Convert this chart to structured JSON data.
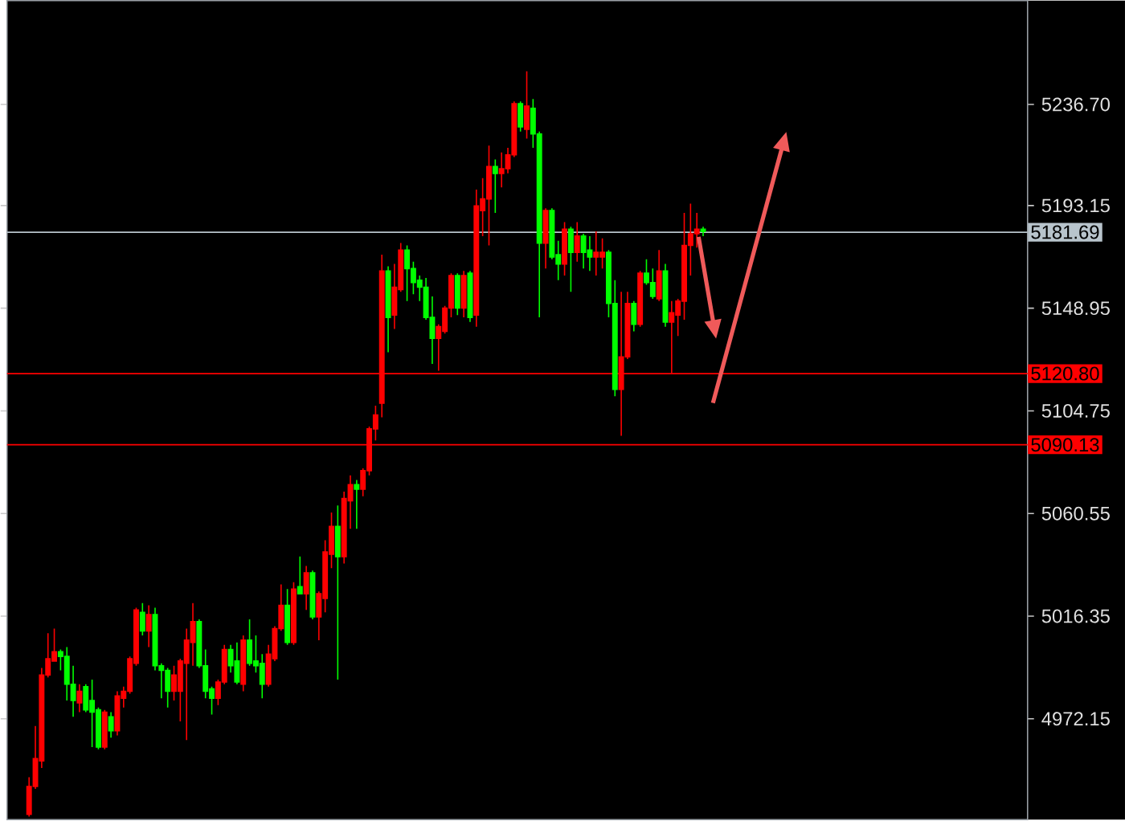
{
  "chart_data": {
    "type": "candlestick",
    "categories": [
      null,
      null,
      null,
      null,
      null,
      null,
      null,
      null,
      null,
      null,
      null,
      null,
      null,
      null,
      null,
      null,
      null,
      null,
      null,
      null,
      null,
      null,
      null,
      null,
      null,
      null,
      null,
      null,
      null,
      null,
      null,
      null,
      null,
      null,
      null,
      null,
      null,
      null,
      null,
      null,
      null,
      null,
      null,
      null,
      null,
      null,
      null,
      null,
      null,
      null,
      null,
      null,
      null,
      null,
      null,
      null,
      null,
      null,
      null,
      null,
      null,
      null,
      null,
      null,
      null,
      null,
      null,
      null,
      null,
      null,
      null,
      null,
      null,
      null,
      null,
      null,
      null,
      null,
      null,
      null,
      null,
      null,
      null,
      null,
      null,
      null,
      null,
      null,
      null,
      null,
      null,
      null,
      null,
      null,
      null,
      null,
      null,
      null,
      null,
      null,
      null,
      null,
      null,
      null,
      null,
      null,
      null,
      null,
      null,
      null,
      null,
      null,
      null,
      null,
      null,
      null,
      null,
      null,
      null,
      null,
      null,
      null,
      null,
      null,
      null,
      null,
      null,
      null,
      null,
      null,
      null,
      null,
      null,
      null,
      null,
      null,
      null,
      null,
      null,
      null,
      null,
      null,
      null,
      null,
      null,
      null,
      null,
      null,
      null,
      null,
      null,
      null,
      null,
      null,
      null,
      null,
      null,
      null,
      null,
      null,
      null,
      null
    ],
    "ohlc": [
      null,
      null,
      null,
      [
        4931,
        4947,
        4930,
        4943
      ],
      [
        4943,
        4969,
        4942,
        4955
      ],
      [
        4954,
        4994,
        4951,
        4991
      ],
      [
        4991,
        5009,
        4990,
        4998
      ],
      [
        4997,
        5011,
        4997,
        5001
      ],
      [
        5001,
        5002,
        4993,
        4999
      ],
      [
        4999,
        5003,
        4980,
        4987
      ],
      [
        4987,
        4995,
        4973,
        4980
      ],
      [
        4979,
        4987,
        4975,
        4984
      ],
      [
        4986,
        4987,
        4975,
        4976
      ],
      [
        4980,
        4989,
        4960,
        4975
      ],
      [
        4976,
        4977,
        4959,
        4960
      ],
      [
        4960,
        4976,
        4959,
        4975
      ],
      [
        4973,
        4975,
        4964,
        4967
      ],
      [
        4967,
        4984,
        4965,
        4982
      ],
      [
        4981,
        4986,
        4977,
        4984
      ],
      [
        4984,
        4999,
        4983,
        4998
      ],
      [
        4996,
        5020,
        4995,
        5019
      ],
      [
        5018,
        5022,
        5008,
        5010
      ],
      [
        5010,
        5021,
        5003,
        5017
      ],
      [
        5017,
        5020,
        4993,
        4995
      ],
      [
        4995,
        4996,
        4981,
        4993
      ],
      [
        4993,
        4994,
        4977,
        4984
      ],
      [
        4984,
        4995,
        4980,
        4991
      ],
      [
        4984,
        4998,
        4971,
        4997
      ],
      [
        4996,
        5011,
        4963,
        5006
      ],
      [
        5005,
        5022,
        4995,
        5014
      ],
      [
        5014,
        5015,
        4994,
        4995
      ],
      [
        4995,
        5002,
        4981,
        4984
      ],
      [
        4985,
        4986,
        4974,
        4981
      ],
      [
        4981,
        4989,
        4978,
        4988
      ],
      [
        4988,
        5004,
        4987,
        5002
      ],
      [
        5002,
        5004,
        4992,
        4995
      ],
      [
        4997,
        5005,
        4987,
        4988
      ],
      [
        4987,
        5008,
        4984,
        5006
      ],
      [
        5006,
        5015,
        4995,
        4996
      ],
      [
        4997,
        5008,
        4992,
        4995
      ],
      [
        4996,
        5000,
        4981,
        4987
      ],
      [
        4987,
        5004,
        4986,
        5000
      ],
      [
        4998,
        5012,
        4997,
        5011
      ],
      [
        5011,
        5030,
        5010,
        5021
      ],
      [
        5021,
        5028,
        5004,
        5005
      ],
      [
        5005,
        5031,
        5004,
        5028
      ],
      [
        5029,
        5042,
        5026,
        5026
      ],
      [
        5026,
        5038,
        5019,
        5035
      ],
      [
        5035,
        5036,
        5015,
        5016
      ],
      [
        5016,
        5027,
        5006,
        5026
      ],
      [
        5024,
        5049,
        5018,
        5044
      ],
      [
        5043,
        5061,
        5037,
        5055
      ],
      [
        5055,
        5064,
        4989,
        5042
      ],
      [
        5042,
        5070,
        5039,
        5067
      ],
      [
        5066,
        5077,
        5054,
        5073
      ],
      [
        5073,
        5075,
        5054,
        5071
      ],
      [
        5071,
        5080,
        5068,
        5079
      ],
      [
        5079,
        5098,
        5077,
        5097
      ],
      [
        5097,
        5107,
        5092,
        5103
      ],
      [
        5108,
        5172,
        5102,
        5165
      ],
      [
        5165,
        5167,
        5130,
        5145
      ],
      [
        5146,
        5168,
        5140,
        5158
      ],
      [
        5157,
        5177,
        5156,
        5174
      ],
      [
        5174,
        5176,
        5152,
        5166
      ],
      [
        5166,
        5169,
        5155,
        5160
      ],
      [
        5161,
        5163,
        5152,
        5158
      ],
      [
        5158,
        5162,
        5144,
        5145
      ],
      [
        5145,
        5154,
        5125,
        5136
      ],
      [
        5136,
        5142,
        5122,
        5141
      ],
      [
        5139,
        5150,
        5138,
        5149
      ],
      [
        5149,
        5164,
        5145,
        5163
      ],
      [
        5163,
        5164,
        5146,
        5149
      ],
      [
        5149,
        5165,
        5145,
        5163
      ],
      [
        5164,
        5165,
        5143,
        5145
      ],
      [
        5146,
        5200,
        5141,
        5193
      ],
      [
        5191,
        5205,
        5180,
        5196
      ],
      [
        5196,
        5219,
        5176,
        5210
      ],
      [
        5210,
        5213,
        5190,
        5207
      ],
      [
        5207,
        5216,
        5201,
        5209
      ],
      [
        5209,
        5218,
        5207,
        5215
      ],
      [
        5215,
        5238,
        5214,
        5237
      ],
      [
        5237,
        5238,
        5225,
        5227
      ],
      [
        5226,
        5251,
        5222,
        5236
      ],
      [
        5235,
        5239,
        5218,
        5224
      ],
      [
        5224,
        5225,
        5145,
        5177
      ],
      [
        5177,
        5192,
        5166,
        5191
      ],
      [
        5191,
        5192,
        5170,
        5171
      ],
      [
        5172,
        5178,
        5161,
        5168
      ],
      [
        5168,
        5186,
        5163,
        5183
      ],
      [
        5183,
        5184,
        5156,
        5173
      ],
      [
        5173,
        5186,
        5169,
        5180
      ],
      [
        5180,
        5181,
        5166,
        5173
      ],
      [
        5174,
        5180,
        5165,
        5171
      ],
      [
        5171,
        5182,
        5163,
        5173
      ],
      [
        5171,
        5179,
        5166,
        5173
      ],
      [
        5173,
        5174,
        5145,
        5151
      ],
      [
        5151,
        5161,
        5111,
        5114
      ],
      [
        5114,
        5156,
        5094,
        5128
      ],
      [
        5128,
        5156,
        5127,
        5151
      ],
      [
        5151,
        5152,
        5139,
        5142
      ],
      [
        5142,
        5165,
        5141,
        5164
      ],
      [
        5164,
        5170,
        5159,
        5160
      ],
      [
        5160,
        5166,
        5153,
        5154
      ],
      [
        5153,
        5174,
        5152,
        5165
      ],
      [
        5165,
        5168,
        5141,
        5143
      ],
      [
        5143,
        5152,
        5121,
        5147
      ],
      [
        5146,
        5153,
        5137,
        5152
      ],
      [
        5152,
        5190,
        5144,
        5176
      ],
      [
        5176,
        5194,
        5163,
        5181
      ],
      [
        5181,
        5190,
        5175,
        5183
      ],
      [
        5183,
        5184,
        5180,
        5182
      ],
      null,
      null,
      null,
      null,
      null,
      null,
      null,
      null,
      null,
      null,
      null,
      null,
      null,
      null,
      null,
      null,
      null,
      null,
      null,
      null,
      null,
      null,
      null,
      null,
      null,
      null,
      null,
      null,
      null,
      null,
      null,
      null,
      null,
      null,
      null,
      null,
      null,
      null,
      null,
      null,
      null,
      null,
      null,
      null,
      null,
      null,
      null,
      null,
      null,
      null,
      null
    ],
    "colors": [
      null,
      null,
      null,
      "#ff0000",
      "#ff0000",
      "#ff0000",
      "#ff0000",
      "#ff0000",
      "#00ff00",
      "#00ff00",
      "#00ff00",
      "#ff0000",
      "#00ff00",
      "#00ff00",
      "#00ff00",
      "#ff0000",
      "#00ff00",
      "#ff0000",
      "#ff0000",
      "#ff0000",
      "#ff0000",
      "#00ff00",
      "#ff0000",
      "#00ff00",
      "#00ff00",
      "#00ff00",
      "#ff0000",
      "#ff0000",
      "#ff0000",
      "#ff0000",
      "#00ff00",
      "#00ff00",
      "#00ff00",
      "#ff0000",
      "#ff0000",
      "#00ff00",
      "#00ff00",
      "#ff0000",
      "#00ff00",
      "#00ff00",
      "#00ff00",
      "#ff0000",
      "#ff0000",
      "#ff0000",
      "#00ff00",
      "#ff0000",
      "#00ff00",
      "#ff0000",
      "#00ff00",
      "#ff0000",
      "#ff0000",
      "#ff0000",
      "#00ff00",
      "#ff0000",
      "#ff0000",
      "#00ff00",
      "#ff0000",
      "#ff0000",
      "#ff0000",
      "#ff0000",
      "#00ff00",
      "#ff0000",
      "#ff0000",
      "#00ff00",
      "#00ff00",
      "#00ff00",
      "#00ff00",
      "#00ff00",
      "#ff0000",
      "#ff0000",
      "#ff0000",
      "#00ff00",
      "#ff0000",
      "#00ff00",
      "#ff0000",
      "#ff0000",
      "#ff0000",
      "#00ff00",
      "#ff0000",
      "#ff0000",
      "#ff0000",
      "#00ff00",
      "#ff0000",
      "#00ff00",
      "#00ff00",
      "#ff0000",
      "#00ff00",
      "#00ff00",
      "#ff0000",
      "#00ff00",
      "#ff0000",
      "#00ff00",
      "#00ff00",
      "#ff0000",
      "#ff0000",
      "#00ff00",
      "#00ff00",
      "#ff0000",
      "#ff0000",
      "#00ff00",
      "#ff0000",
      "#00ff00",
      "#00ff00",
      "#ff0000",
      "#00ff00",
      "#ff0000",
      "#ff0000",
      "#ff0000",
      "#ff0000",
      "#ff0000",
      "#00ff00",
      null,
      null,
      null,
      null,
      null,
      null,
      null,
      null,
      null,
      null,
      null,
      null,
      null,
      null,
      null,
      null,
      null,
      null,
      null,
      null,
      null,
      null,
      null,
      null,
      null,
      null,
      null,
      null,
      null,
      null,
      null,
      null,
      null,
      null,
      null,
      null,
      null,
      null,
      null,
      null,
      null,
      null,
      null,
      null,
      null,
      null,
      null,
      null,
      null,
      null,
      null
    ],
    "ylim": [
      4928.7,
      5281.4
    ],
    "yticks": [
      {
        "value": 4972.15,
        "label": "4972.15"
      },
      {
        "value": 5016.35,
        "label": "5016.35"
      },
      {
        "value": 5060.55,
        "label": "5060.55"
      },
      {
        "value": 5104.75,
        "label": "5104.75"
      },
      {
        "value": 5148.95,
        "label": "5148.95"
      },
      {
        "value": 5193.15,
        "label": "5193.15"
      },
      {
        "value": 5236.7,
        "label": "5236.70"
      }
    ],
    "tick_labels": "y",
    "ref_lines": [
      {
        "axis": "y",
        "value": 5181.69,
        "label": "5181.69",
        "color": "#b8c4cc",
        "line_style": "solid"
      },
      {
        "axis": "y",
        "value": 5120.8,
        "label": "5120.80",
        "color": "#ff0000",
        "line_style": "solid"
      },
      {
        "axis": "y",
        "value": 5090.13,
        "label": "5090.13",
        "color": "#ff0000",
        "line_style": "solid"
      }
    ]
  }
}
